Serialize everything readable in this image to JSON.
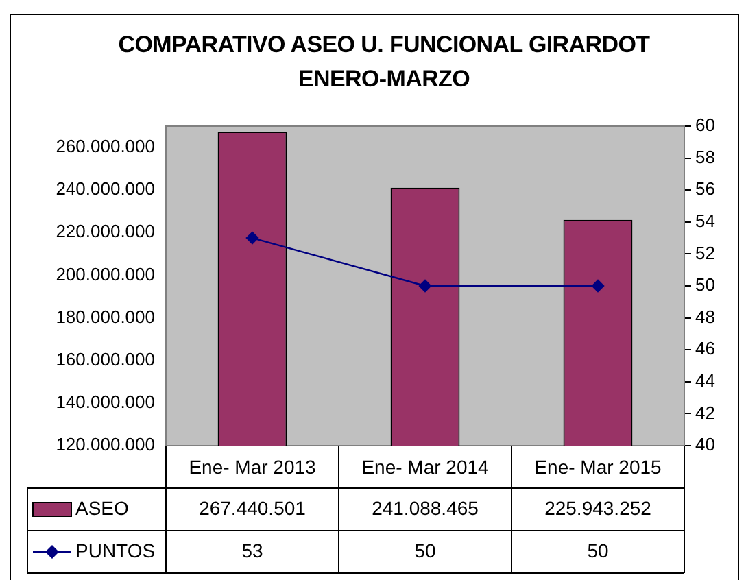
{
  "chart_data": {
    "type": "bar",
    "title": "COMPARATIVO ASEO U. FUNCIONAL GIRARDOT ENERO-MARZO",
    "categories": [
      "Ene- Mar 2013",
      "Ene- Mar 2014",
      "Ene- Mar 2015"
    ],
    "series": [
      {
        "name": "ASEO",
        "color": "#993366",
        "values": [
          267440501,
          241088465,
          225943252
        ],
        "value_labels": [
          "267.440.501",
          "241.088.465",
          "225.943.252"
        ]
      },
      {
        "name": "PUNTOS",
        "type": "line",
        "axis": "y2",
        "color": "#000080",
        "values": [
          53,
          50,
          50
        ],
        "value_labels": [
          "53",
          "50",
          "50"
        ]
      }
    ],
    "ylim": [
      120000000,
      270000000
    ],
    "yticks": [
      {
        "value": 120000000,
        "label": "120.000.000"
      },
      {
        "value": 140000000,
        "label": "140.000.000"
      },
      {
        "value": 160000000,
        "label": "160.000.000"
      },
      {
        "value": 180000000,
        "label": "180.000.000"
      },
      {
        "value": 200000000,
        "label": "200.000.000"
      },
      {
        "value": 220000000,
        "label": "220.000.000"
      },
      {
        "value": 240000000,
        "label": "240.000.000"
      },
      {
        "value": 260000000,
        "label": "260.000.000"
      }
    ],
    "y2lim": [
      40,
      60
    ],
    "y2ticks": [
      40,
      42,
      44,
      46,
      48,
      50,
      52,
      54,
      56,
      58,
      60
    ],
    "grid": false,
    "legend": "bottom",
    "marker": "diamond",
    "line_style": "solid"
  }
}
